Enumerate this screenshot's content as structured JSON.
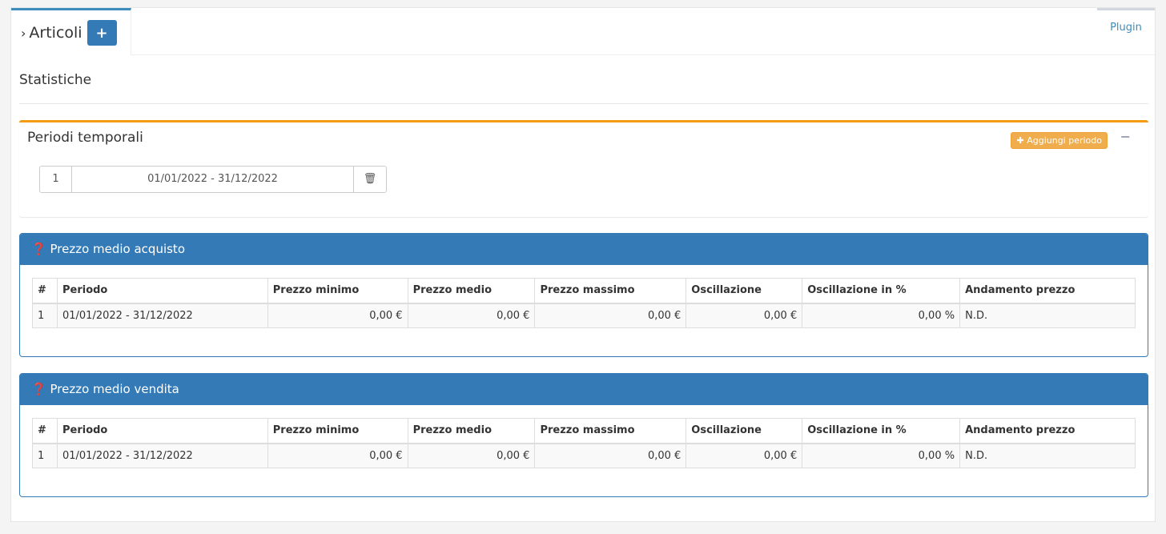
{
  "tab": {
    "label": "Articoli",
    "add_label": "+",
    "plugin_label": "Plugin"
  },
  "section_title": "Statistiche",
  "periods": {
    "title": "Periodi temporali",
    "add_label": "Aggiungi periodo",
    "collapse_label": "−",
    "items": [
      {
        "num": "1",
        "range": "01/01/2022 - 31/12/2022"
      }
    ]
  },
  "columns": [
    "#",
    "Periodo",
    "Prezzo minimo",
    "Prezzo medio",
    "Prezzo massimo",
    "Oscillazione",
    "Oscillazione in %",
    "Andamento prezzo"
  ],
  "panels": [
    {
      "title": "Prezzo medio acquisto",
      "rows": [
        [
          "1",
          "01/01/2022 - 31/12/2022",
          "0,00 €",
          "0,00 €",
          "0,00 €",
          "0,00 €",
          "0,00 %",
          "N.D."
        ]
      ]
    },
    {
      "title": "Prezzo medio vendita",
      "rows": [
        [
          "1",
          "01/01/2022 - 31/12/2022",
          "0,00 €",
          "0,00 €",
          "0,00 €",
          "0,00 €",
          "0,00 %",
          "N.D."
        ]
      ]
    }
  ]
}
